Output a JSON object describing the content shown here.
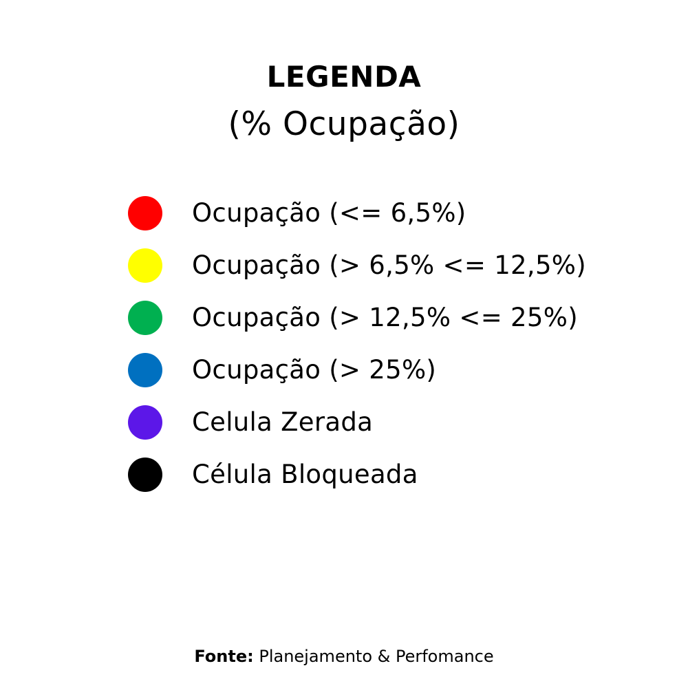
{
  "legend": {
    "title": "LEGENDA",
    "subtitle": "(% Ocupação)",
    "items": [
      {
        "label": "Ocupação (<= 6,5%)",
        "color": "#ff0000",
        "icon": "red-circle-icon"
      },
      {
        "label": "Ocupação (> 6,5% <= 12,5%)",
        "color": "#ffff00",
        "icon": "yellow-circle-icon"
      },
      {
        "label": "Ocupação (> 12,5% <= 25%)",
        "color": "#00b050",
        "icon": "green-circle-icon"
      },
      {
        "label": "Ocupação (> 25%)",
        "color": "#0070c0",
        "icon": "blue-circle-icon"
      },
      {
        "label": "Celula Zerada",
        "color": "#5c17e8",
        "icon": "purple-circle-icon"
      },
      {
        "label": "Célula Bloqueada",
        "color": "#000000",
        "icon": "black-circle-icon"
      }
    ]
  },
  "source": {
    "key": "Fonte:",
    "value": "Planejamento & Perfomance"
  }
}
